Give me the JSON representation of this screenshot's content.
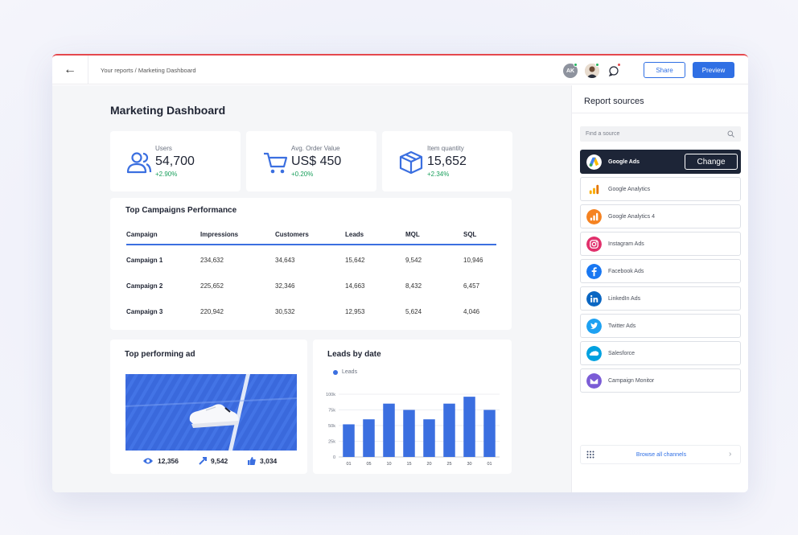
{
  "topbar": {
    "back_label": "←",
    "breadcrumb": "Your reports / Marketing Dashboard",
    "avatar_initials": "AK",
    "share_label": "Share",
    "preview_label": "Preview",
    "status_colors": {
      "online": "#22b55f",
      "alert": "#e5484d"
    }
  },
  "page": {
    "title": "Marketing Dashboard"
  },
  "kpis": [
    {
      "label": "Users",
      "value": "54,700",
      "change": "+2.90%",
      "icon": "users-icon"
    },
    {
      "label": "Avg. Order Value",
      "value": "US$ 450",
      "change": "+0.20%",
      "icon": "cart-icon"
    },
    {
      "label": "Item quantity",
      "value": "15,652",
      "change": "+2.34%",
      "icon": "box-icon"
    }
  ],
  "campaigns": {
    "title": "Top Campaigns Performance",
    "columns": [
      "Campaign",
      "Impressions",
      "Customers",
      "Leads",
      "MQL",
      "SQL"
    ],
    "rows": [
      [
        "Campaign 1",
        "234,632",
        "34,643",
        "15,642",
        "9,542",
        "10,946"
      ],
      [
        "Campaign 2",
        "225,652",
        "32,346",
        "14,663",
        "8,432",
        "6,457"
      ],
      [
        "Campaign 3",
        "220,942",
        "30,532",
        "12,953",
        "5,624",
        "4,046"
      ]
    ]
  },
  "top_ad": {
    "title": "Top performing ad",
    "views": "12,356",
    "shares": "9,542",
    "likes": "3,034"
  },
  "chart_data": {
    "type": "bar",
    "title": "Leads by date",
    "categories": [
      "01",
      "05",
      "10",
      "15",
      "20",
      "25",
      "30",
      "01"
    ],
    "series": [
      {
        "name": "Leads",
        "values": [
          52000,
          60000,
          85000,
          75000,
          60000,
          85000,
          96000,
          75000
        ]
      }
    ],
    "yticks": [
      "0",
      "25k",
      "50k",
      "75k",
      "100k"
    ],
    "ylim": [
      0,
      100000
    ],
    "grid": true,
    "legend": "top-left",
    "bar_color": "#3b6fe0"
  },
  "sources": {
    "title": "Report sources",
    "search_placeholder": "Find a source",
    "change_label": "Change",
    "items": [
      {
        "name": "Google Ads",
        "logo": "google-ads-icon",
        "active": true
      },
      {
        "name": "Google Analytics",
        "logo": "google-analytics-icon"
      },
      {
        "name": "Google Analytics 4",
        "logo": "google-analytics-4-icon"
      },
      {
        "name": "Instagram Ads",
        "logo": "instagram-icon"
      },
      {
        "name": "Facebook Ads",
        "logo": "facebook-icon"
      },
      {
        "name": "LinkedIn Ads",
        "logo": "linkedin-icon"
      },
      {
        "name": "Twitter Ads",
        "logo": "twitter-icon"
      },
      {
        "name": "Salesforce",
        "logo": "salesforce-icon"
      },
      {
        "name": "Campaign Monitor",
        "logo": "campaign-monitor-icon"
      }
    ],
    "browse_label": "Browse all channels"
  }
}
